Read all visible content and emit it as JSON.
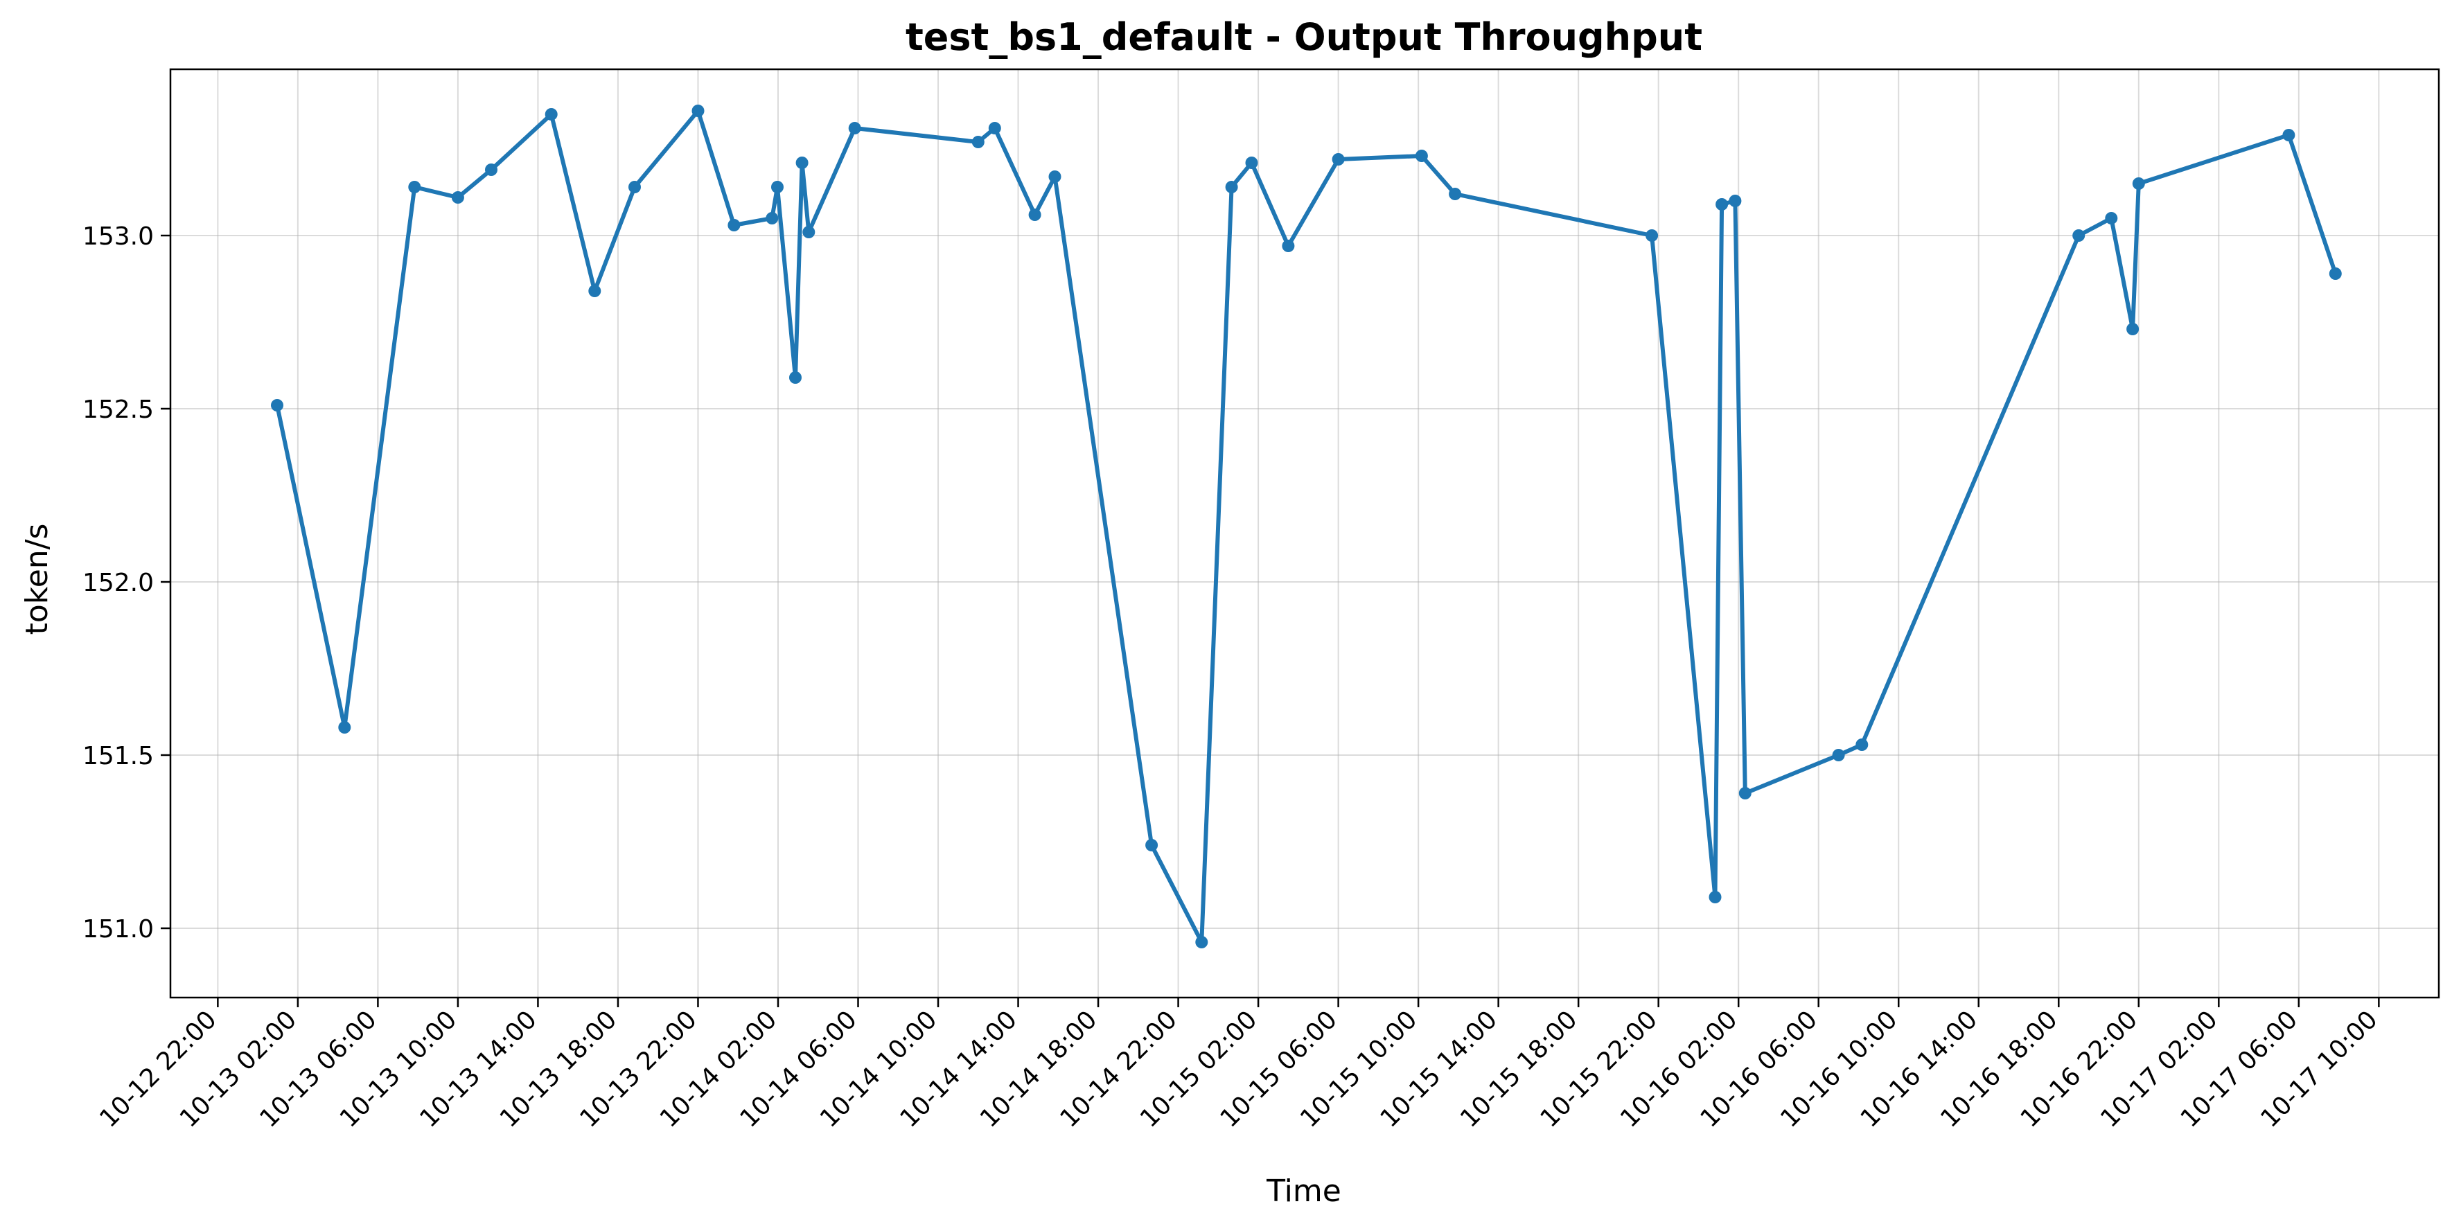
{
  "chart_data": {
    "type": "line",
    "title": "test_bs1_default - Output Throughput",
    "xlabel": "Time",
    "ylabel": "token/s",
    "xlim": [
      "2025-10-12T19:38",
      "2025-10-17T13:00"
    ],
    "ylim": [
      150.8,
      153.48
    ],
    "grid": true,
    "x_ticks": [
      {
        "label": "10-12 22:00",
        "t": "2025-10-12T22:00"
      },
      {
        "label": "10-13 02:00",
        "t": "2025-10-13T02:00"
      },
      {
        "label": "10-13 06:00",
        "t": "2025-10-13T06:00"
      },
      {
        "label": "10-13 10:00",
        "t": "2025-10-13T10:00"
      },
      {
        "label": "10-13 14:00",
        "t": "2025-10-13T14:00"
      },
      {
        "label": "10-13 18:00",
        "t": "2025-10-13T18:00"
      },
      {
        "label": "10-13 22:00",
        "t": "2025-10-13T22:00"
      },
      {
        "label": "10-14 02:00",
        "t": "2025-10-14T02:00"
      },
      {
        "label": "10-14 06:00",
        "t": "2025-10-14T06:00"
      },
      {
        "label": "10-14 10:00",
        "t": "2025-10-14T10:00"
      },
      {
        "label": "10-14 14:00",
        "t": "2025-10-14T14:00"
      },
      {
        "label": "10-14 18:00",
        "t": "2025-10-14T18:00"
      },
      {
        "label": "10-14 22:00",
        "t": "2025-10-14T22:00"
      },
      {
        "label": "10-15 02:00",
        "t": "2025-10-15T02:00"
      },
      {
        "label": "10-15 06:00",
        "t": "2025-10-15T06:00"
      },
      {
        "label": "10-15 10:00",
        "t": "2025-10-15T10:00"
      },
      {
        "label": "10-15 14:00",
        "t": "2025-10-15T14:00"
      },
      {
        "label": "10-15 18:00",
        "t": "2025-10-15T18:00"
      },
      {
        "label": "10-15 22:00",
        "t": "2025-10-15T22:00"
      },
      {
        "label": "10-16 02:00",
        "t": "2025-10-16T02:00"
      },
      {
        "label": "10-16 06:00",
        "t": "2025-10-16T06:00"
      },
      {
        "label": "10-16 10:00",
        "t": "2025-10-16T10:00"
      },
      {
        "label": "10-16 14:00",
        "t": "2025-10-16T14:00"
      },
      {
        "label": "10-16 18:00",
        "t": "2025-10-16T18:00"
      },
      {
        "label": "10-16 22:00",
        "t": "2025-10-16T22:00"
      },
      {
        "label": "10-17 02:00",
        "t": "2025-10-17T02:00"
      },
      {
        "label": "10-17 06:00",
        "t": "2025-10-17T06:00"
      },
      {
        "label": "10-17 10:00",
        "t": "2025-10-17T10:00"
      }
    ],
    "y_ticks": [
      151.0,
      151.5,
      152.0,
      152.5,
      153.0
    ],
    "series": [
      {
        "color": "#1f77b4",
        "x": [
          "2025-10-13T00:58",
          "2025-10-13T04:20",
          "2025-10-13T07:50",
          "2025-10-13T10:00",
          "2025-10-13T11:40",
          "2025-10-13T14:40",
          "2025-10-13T16:50",
          "2025-10-13T18:50",
          "2025-10-13T22:00",
          "2025-10-13T23:48",
          "2025-10-14T01:42",
          "2025-10-14T01:58",
          "2025-10-14T02:52",
          "2025-10-14T03:12",
          "2025-10-14T03:32",
          "2025-10-14T05:50",
          "2025-10-14T12:00",
          "2025-10-14T12:50",
          "2025-10-14T14:50",
          "2025-10-14T15:50",
          "2025-10-14T20:40",
          "2025-10-14T23:10",
          "2025-10-15T00:40",
          "2025-10-15T01:40",
          "2025-10-15T03:30",
          "2025-10-15T06:00",
          "2025-10-15T10:10",
          "2025-10-15T11:50",
          "2025-10-15T21:40",
          "2025-10-16T00:50",
          "2025-10-16T01:10",
          "2025-10-16T01:50",
          "2025-10-16T02:20",
          "2025-10-16T07:00",
          "2025-10-16T08:10",
          "2025-10-16T19:00",
          "2025-10-16T20:38",
          "2025-10-16T21:42",
          "2025-10-16T22:00",
          "2025-10-17T05:30",
          "2025-10-17T07:50"
        ],
        "values": [
          152.51,
          151.58,
          153.14,
          153.11,
          153.19,
          153.35,
          152.84,
          153.14,
          153.36,
          153.03,
          153.05,
          153.14,
          152.59,
          153.21,
          153.01,
          153.31,
          153.27,
          153.31,
          153.06,
          153.17,
          151.24,
          150.96,
          153.14,
          153.21,
          152.97,
          153.22,
          153.23,
          153.12,
          153.0,
          151.09,
          153.09,
          153.1,
          151.39,
          151.5,
          151.53,
          153.0,
          153.05,
          152.73,
          153.15,
          153.29,
          152.89
        ]
      }
    ]
  }
}
